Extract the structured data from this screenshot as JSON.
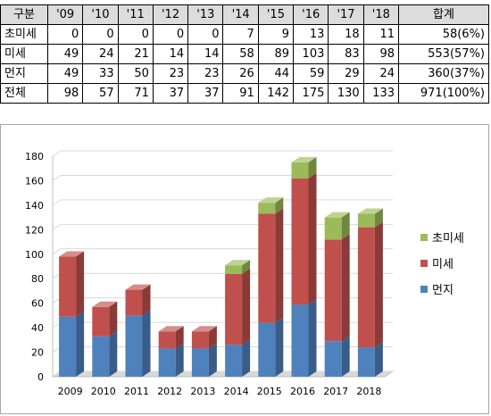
{
  "table": {
    "header": [
      "구분",
      "'09",
      "'10",
      "'11",
      "'12",
      "'13",
      "'14",
      "'15",
      "'16",
      "'17",
      "'18",
      "합계"
    ],
    "rows": [
      [
        "초미세",
        "0",
        "0",
        "0",
        "0",
        "0",
        "7",
        "9",
        "13",
        "18",
        "11",
        "58(6%)"
      ],
      [
        "미세",
        "49",
        "24",
        "21",
        "14",
        "14",
        "58",
        "89",
        "103",
        "83",
        "98",
        "553(57%)"
      ],
      [
        "먼지",
        "49",
        "33",
        "50",
        "23",
        "23",
        "26",
        "44",
        "59",
        "29",
        "24",
        "360(37%)"
      ],
      [
        "전체",
        "98",
        "57",
        "71",
        "37",
        "37",
        "91",
        "142",
        "175",
        "130",
        "133",
        "971(100%)"
      ]
    ]
  },
  "chart_data": {
    "type": "bar",
    "stacked": true,
    "style": "3d-column",
    "categories": [
      "2009",
      "2010",
      "2011",
      "2012",
      "2013",
      "2014",
      "2015",
      "2016",
      "2017",
      "2018"
    ],
    "series": [
      {
        "name": "먼지",
        "values": [
          49,
          33,
          50,
          23,
          23,
          26,
          44,
          59,
          29,
          24
        ],
        "color": "#4f81bd"
      },
      {
        "name": "미세",
        "values": [
          49,
          24,
          21,
          14,
          14,
          58,
          89,
          103,
          83,
          98
        ],
        "color": "#c0504d"
      },
      {
        "name": "초미세",
        "values": [
          0,
          0,
          0,
          0,
          0,
          7,
          9,
          13,
          18,
          11
        ],
        "color": "#9bbb59"
      }
    ],
    "yticks": [
      "0",
      "20",
      "40",
      "60",
      "80",
      "100",
      "120",
      "140",
      "160",
      "180"
    ],
    "ylim": [
      0,
      180
    ],
    "grid": true,
    "legend_position": "right",
    "legend_order": [
      "초미세",
      "미세",
      "먼지"
    ]
  }
}
